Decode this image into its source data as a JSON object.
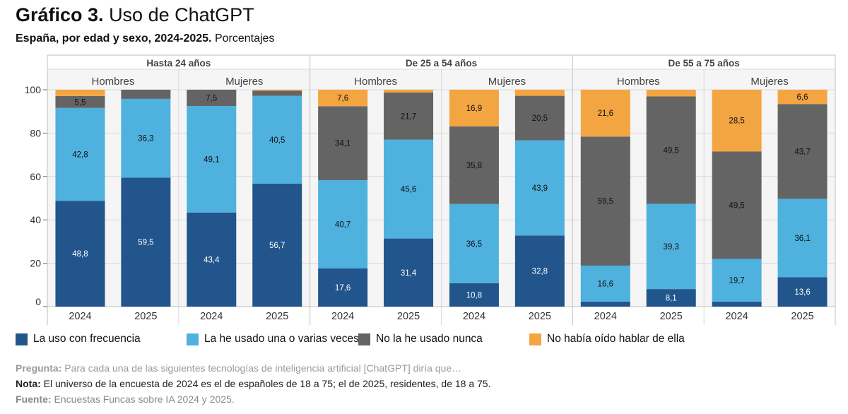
{
  "header": {
    "title_bold": "Gráfico 3.",
    "title_rest": "Uso de ChatGPT",
    "subtitle_bold": "España, por edad y sexo, 2024-2025.",
    "subtitle_rest": "Porcentajes"
  },
  "chart_data": {
    "type": "bar",
    "stacked": true,
    "ylim": [
      0,
      100
    ],
    "yticks": [
      0,
      20,
      40,
      60,
      80,
      100
    ],
    "series_names": [
      "La uso con frecuencia",
      "La he usado una o varias veces",
      "No la he usado nunca",
      "No había oído hablar de ella"
    ],
    "colors": [
      "#21558c",
      "#4fb1de",
      "#646464",
      "#f3a542"
    ],
    "groups": [
      {
        "label": "Hasta 24 años",
        "subgroups": [
          {
            "label": "Hombres",
            "bars": [
              {
                "year": "2024",
                "values": [
                  48.8,
                  42.8,
                  5.5,
                  2.9
                ],
                "labels": [
                  "48,8",
                  "42,8",
                  "5,5",
                  ""
                ]
              },
              {
                "year": "2025",
                "values": [
                  59.5,
                  36.3,
                  4.2,
                  0.0
                ],
                "labels": [
                  "59,5",
                  "36,3",
                  "",
                  ""
                ]
              }
            ]
          },
          {
            "label": "Mujeres",
            "bars": [
              {
                "year": "2024",
                "values": [
                  43.4,
                  49.1,
                  7.5,
                  0.0
                ],
                "labels": [
                  "43,4",
                  "49,1",
                  "7,5",
                  ""
                ]
              },
              {
                "year": "2025",
                "values": [
                  56.7,
                  40.5,
                  2.3,
                  0.5
                ],
                "labels": [
                  "56,7",
                  "40,5",
                  "",
                  ""
                ]
              }
            ]
          }
        ]
      },
      {
        "label": "De 25 a 54 años",
        "subgroups": [
          {
            "label": "Hombres",
            "bars": [
              {
                "year": "2024",
                "values": [
                  17.6,
                  40.7,
                  34.1,
                  7.6
                ],
                "labels": [
                  "17,6",
                  "40,7",
                  "34,1",
                  "7,6"
                ]
              },
              {
                "year": "2025",
                "values": [
                  31.4,
                  45.6,
                  21.7,
                  1.3
                ],
                "labels": [
                  "31,4",
                  "45,6",
                  "21,7",
                  ""
                ]
              }
            ]
          },
          {
            "label": "Mujeres",
            "bars": [
              {
                "year": "2024",
                "values": [
                  10.8,
                  36.5,
                  35.8,
                  16.9
                ],
                "labels": [
                  "10,8",
                  "36,5",
                  "35,8",
                  "16,9"
                ]
              },
              {
                "year": "2025",
                "values": [
                  32.8,
                  43.9,
                  20.5,
                  2.8
                ],
                "labels": [
                  "32,8",
                  "43,9",
                  "20,5",
                  ""
                ]
              }
            ]
          }
        ]
      },
      {
        "label": "De 55 a 75 años",
        "subgroups": [
          {
            "label": "Hombres",
            "bars": [
              {
                "year": "2024",
                "values": [
                  2.3,
                  16.6,
                  59.5,
                  21.6
                ],
                "labels": [
                  "",
                  "16,6",
                  "59,5",
                  "21,6"
                ]
              },
              {
                "year": "2025",
                "values": [
                  8.1,
                  39.3,
                  49.5,
                  3.1
                ],
                "labels": [
                  "8,1",
                  "39,3",
                  "49,5",
                  ""
                ]
              }
            ]
          },
          {
            "label": "Mujeres",
            "bars": [
              {
                "year": "2024",
                "values": [
                  2.3,
                  19.7,
                  49.5,
                  28.5
                ],
                "labels": [
                  "",
                  "19,7",
                  "49,5",
                  "28,5"
                ]
              },
              {
                "year": "2025",
                "values": [
                  13.6,
                  36.1,
                  43.7,
                  6.6
                ],
                "labels": [
                  "13,6",
                  "36,1",
                  "43,7",
                  "6,6"
                ]
              }
            ]
          }
        ]
      }
    ]
  },
  "legend": {
    "items": [
      "La uso con frecuencia",
      "La he usado una o varias veces",
      "No la he usado nunca",
      "No había oído hablar de ella"
    ]
  },
  "notes": {
    "pregunta_label": "Pregunta:",
    "pregunta_text": "Para cada una de las siguientes tecnologías de inteligencia artificial [ChatGPT] diría que…",
    "nota_label": "Nota:",
    "nota_text": "El universo de la encuesta de 2024 es el de españoles de 18 a 75; el de 2025, residentes, de 18 a 75.",
    "fuente_label": "Fuente:",
    "fuente_text": "Encuestas Funcas sobre IA 2024 y 2025."
  }
}
